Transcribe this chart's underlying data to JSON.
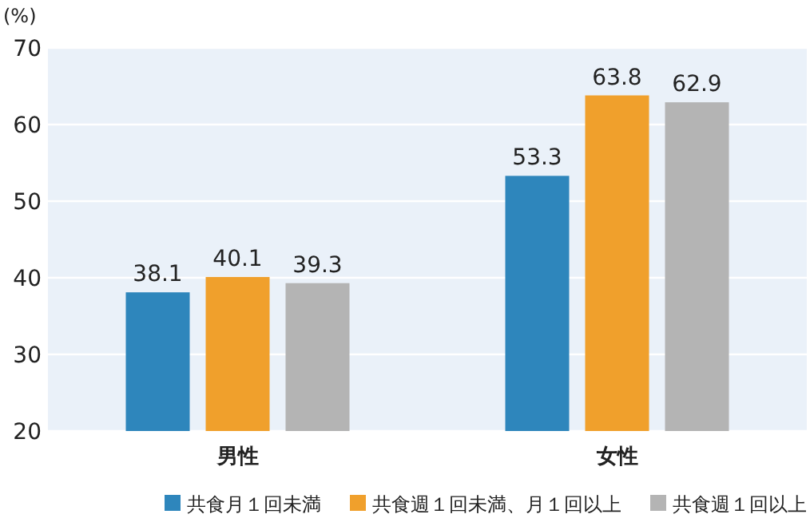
{
  "chart_data": {
    "type": "bar",
    "ylabel": "(%)",
    "categories": [
      "男性",
      "女性"
    ],
    "series": [
      {
        "name": "共食月１回未満",
        "color": "#2e86bc",
        "values": [
          38.1,
          53.3
        ]
      },
      {
        "name": "共食週１回未満、月１回以上",
        "color": "#f0a02c",
        "values": [
          40.1,
          63.8
        ]
      },
      {
        "name": "共食週１回以上",
        "color": "#b4b4b4",
        "values": [
          39.3,
          62.9
        ]
      }
    ],
    "ylim": [
      20,
      70
    ],
    "yticks": [
      20,
      30,
      40,
      50,
      60,
      70
    ],
    "grid": "y",
    "legend": "bottom",
    "data_labels": true
  }
}
